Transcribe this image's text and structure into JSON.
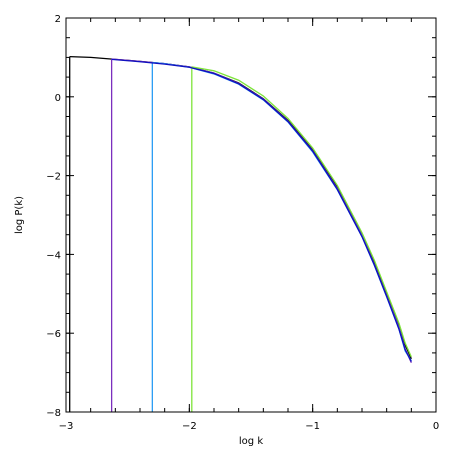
{
  "chart_data": {
    "type": "line",
    "xlabel": "log k",
    "ylabel": "log P(k)",
    "xlim": [
      -3,
      0
    ],
    "ylim": [
      -8,
      2
    ],
    "x_major_ticks": [
      -3,
      -2,
      -1,
      0
    ],
    "y_major_ticks": [
      -8,
      -6,
      -4,
      -2,
      0,
      2
    ],
    "x_tick_labels": [
      "−3",
      "−2",
      "−1",
      "0"
    ],
    "y_tick_labels": [
      "−8",
      "−6",
      "−4",
      "−2",
      "0",
      "2"
    ],
    "grid": false,
    "series": [
      {
        "color": "#000000",
        "cutoff_x": -2.97,
        "points": [
          [
            -2.97,
            1.02
          ],
          [
            -2.8,
            1.0
          ],
          [
            -2.6,
            0.95
          ],
          [
            -2.4,
            0.9
          ],
          [
            -2.2,
            0.84
          ],
          [
            -2.0,
            0.76
          ],
          [
            -1.8,
            0.6
          ],
          [
            -1.6,
            0.35
          ],
          [
            -1.4,
            -0.05
          ],
          [
            -1.2,
            -0.6
          ],
          [
            -1.0,
            -1.35
          ],
          [
            -0.8,
            -2.3
          ],
          [
            -0.6,
            -3.5
          ],
          [
            -0.5,
            -4.2
          ],
          [
            -0.4,
            -5.0
          ],
          [
            -0.3,
            -5.8
          ],
          [
            -0.25,
            -6.3
          ],
          [
            -0.2,
            -6.65
          ]
        ]
      },
      {
        "color": "#7b2fbe",
        "cutoff_x": -2.63,
        "points": [
          [
            -2.63,
            0.96
          ],
          [
            -2.4,
            0.9
          ],
          [
            -2.2,
            0.84
          ],
          [
            -2.0,
            0.76
          ],
          [
            -1.8,
            0.6
          ],
          [
            -1.6,
            0.34
          ],
          [
            -1.4,
            -0.06
          ],
          [
            -1.2,
            -0.62
          ],
          [
            -1.0,
            -1.37
          ],
          [
            -0.8,
            -2.33
          ],
          [
            -0.6,
            -3.52
          ],
          [
            -0.5,
            -4.25
          ],
          [
            -0.4,
            -5.05
          ],
          [
            -0.3,
            -5.85
          ],
          [
            -0.25,
            -6.4
          ],
          [
            -0.2,
            -6.75
          ]
        ]
      },
      {
        "color": "#2a9df4",
        "cutoff_x": -2.3,
        "points": [
          [
            -2.3,
            0.87
          ],
          [
            -2.2,
            0.84
          ],
          [
            -2.0,
            0.75
          ],
          [
            -1.8,
            0.58
          ],
          [
            -1.6,
            0.32
          ],
          [
            -1.4,
            -0.08
          ],
          [
            -1.2,
            -0.64
          ],
          [
            -1.0,
            -1.4
          ],
          [
            -0.8,
            -2.36
          ],
          [
            -0.6,
            -3.55
          ],
          [
            -0.5,
            -4.28
          ],
          [
            -0.4,
            -5.08
          ],
          [
            -0.3,
            -5.9
          ],
          [
            -0.25,
            -6.45
          ],
          [
            -0.2,
            -6.7
          ]
        ]
      },
      {
        "color": "#7ee43a",
        "cutoff_x": -1.98,
        "points": [
          [
            -1.98,
            0.76
          ],
          [
            -1.8,
            0.66
          ],
          [
            -1.6,
            0.42
          ],
          [
            -1.4,
            0.02
          ],
          [
            -1.2,
            -0.55
          ],
          [
            -1.0,
            -1.3
          ],
          [
            -0.8,
            -2.25
          ],
          [
            -0.6,
            -3.45
          ],
          [
            -0.5,
            -4.15
          ],
          [
            -0.4,
            -4.95
          ],
          [
            -0.3,
            -5.75
          ],
          [
            -0.25,
            -6.25
          ],
          [
            -0.2,
            -6.6
          ]
        ]
      },
      {
        "color": "#1010c0",
        "cutoff_x": null,
        "points": [
          [
            -2.63,
            0.95
          ],
          [
            -2.4,
            0.89
          ],
          [
            -2.2,
            0.83
          ],
          [
            -2.0,
            0.75
          ],
          [
            -1.8,
            0.59
          ],
          [
            -1.6,
            0.33
          ],
          [
            -1.4,
            -0.07
          ],
          [
            -1.2,
            -0.63
          ],
          [
            -1.0,
            -1.38
          ],
          [
            -0.8,
            -2.35
          ],
          [
            -0.6,
            -3.55
          ],
          [
            -0.5,
            -4.27
          ],
          [
            -0.4,
            -5.07
          ],
          [
            -0.3,
            -5.9
          ],
          [
            -0.25,
            -6.42
          ],
          [
            -0.2,
            -6.72
          ]
        ]
      }
    ]
  }
}
